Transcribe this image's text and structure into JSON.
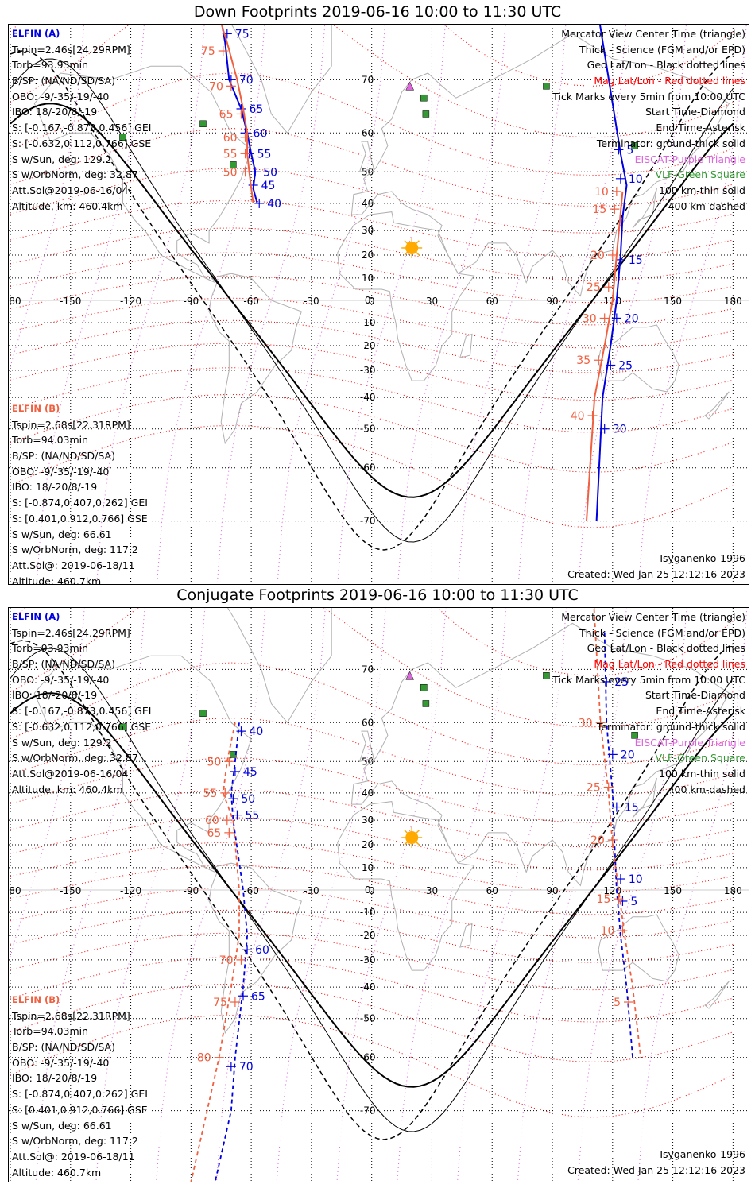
{
  "panels": [
    {
      "title": "Down Footprints 2019-06-16 10:00 to 11:30 UTC",
      "a_info": {
        "name": "ELFIN (A)",
        "lines": [
          "Tspin=2.46s[24.29RPM]",
          "Torb=93.93min",
          "B/SP: (NA/ND/SD/SA)",
          "OBO: -9/-35/-19/-40",
          "IBO: 18/-20/8/-19",
          "S: [-0.167,-0.873,0.456] GEI",
          "S: [-0.632,0.112,0.766] GSE",
          "S w/Sun, deg: 129.2",
          "S w/OrbNorm, deg: 32.87",
          "Att.Sol@2019-06-16/04",
          "Altitude, km: 460.4km"
        ]
      },
      "b_info": {
        "name": "ELFIN (B)",
        "lines": [
          "Tspin=2.68s[22.31RPM]",
          "Torb=94.03min",
          "B/SP: (NA/ND/SD/SA)",
          "OBO: -9/-35/-19/-40",
          "IBO: 18/-20/8/-19",
          "S: [-0.874,0.407,0.262] GEI",
          "S: [0.401,0.912,0.766] GSE",
          "S w/Sun, deg: 66.61",
          "S w/OrbNorm, deg: 117.2",
          "Att.Sol@: 2019-06-18/11",
          "Altitude: 460.7km"
        ]
      },
      "legend": [
        "Mercator View Center Time (triangle)",
        "Thick - Science (FGM and/or EPD)",
        "Geo Lat/Lon - Black dotted lines",
        "Mag Lat/Lon - Red dotted lines",
        "Tick Marks every 5min from 10:00 UTC",
        "Start Time-Diamond",
        "End Time-Asterisk",
        "Terminator: ground-thick solid",
        "EISCAT-Purple Triangle",
        "VLF-Green Square",
        "100 km-thin solid",
        "400 km-dashed"
      ],
      "model": "Tsyganenko-1996",
      "created": "Created: Wed Jan 25 12:12:16 2023"
    },
    {
      "title": "Conjugate Footprints 2019-06-16 10:00 to 11:30 UTC",
      "a_info": {
        "name": "ELFIN (A)",
        "lines": [
          "Tspin=2.46s[24.29RPM]",
          "Torb=93.93min",
          "B/SP: (NA/ND/SD/SA)",
          "OBO: -9/-35/-19/-40",
          "IBO: 18/-20/8/-19",
          "S: [-0.167,-0.873,0.456] GEI",
          "S: [-0.632,0.112,0.766] GSE",
          "S w/Sun, deg: 129.2",
          "S w/OrbNorm, deg: 32.87",
          "Att.Sol@2019-06-16/04",
          "Altitude, km: 460.4km"
        ]
      },
      "b_info": {
        "name": "ELFIN (B)",
        "lines": [
          "Tspin=2.68s[22.31RPM]",
          "Torb=94.03min",
          "B/SP: (NA/ND/SD/SA)",
          "OBO: -9/-35/-19/-40",
          "IBO: 18/-20/8/-19",
          "S: [-0.874,0.407,0.262] GEI",
          "S: [0.401,0.912,0.766] GSE",
          "S w/Sun, deg: 66.61",
          "S w/OrbNorm, deg: 117.2",
          "Att.Sol@: 2019-06-18/11",
          "Altitude: 460.7km"
        ]
      },
      "legend": [
        "Mercator View Center Time (triangle)",
        "Thick - Science (FGM and/or EPD)",
        "Geo Lat/Lon - Black dotted lines",
        "Mag Lat/Lon - Red dotted lines",
        "Tick Marks every 5min from 10:00 UTC",
        "Start Time-Diamond",
        "End Time-Asterisk",
        "Terminator: ground-thick solid",
        "EISCAT-Purple Triangle",
        "VLF-Green Square",
        "100 km-thin solid",
        "400 km-dashed"
      ],
      "model": "Tsyganenko-1996",
      "created": "Created: Wed Jan 25 12:12:16 2023"
    }
  ],
  "colors": {
    "elfin_a": "#0000e0",
    "elfin_b": "#f06040",
    "mag_grid": "#ff0000",
    "geo_grid": "#000000",
    "eiscat": "#dd66dd",
    "vlf": "#339933",
    "sun": "#ffaa00",
    "coast": "#b0b0b0"
  },
  "chart_data": [
    {
      "type": "scatter",
      "title": "Down Footprints 2019-06-16 10:00 to 11:30 UTC",
      "x_ticks": [
        -180,
        -150,
        -120,
        -90,
        -60,
        -30,
        0,
        30,
        60,
        90,
        120,
        150,
        180
      ],
      "y_ticks": [
        70,
        60,
        50,
        40,
        30,
        20,
        10,
        0,
        -10,
        -20,
        -30,
        -40,
        -50,
        -60,
        -70
      ],
      "xlim": [
        -180,
        180
      ],
      "grid": true,
      "subsolar_point": [
        20,
        23
      ],
      "eiscat_stations": [
        [
          16,
          78
        ],
        [
          19,
          69
        ]
      ],
      "vlf_stations": [
        [
          -69,
          52
        ],
        [
          -84,
          62
        ],
        [
          -124,
          59
        ],
        [
          26,
          67
        ],
        [
          27,
          64
        ],
        [
          87,
          69
        ],
        [
          131,
          57
        ]
      ],
      "series": [
        {
          "name": "ELFIN (A)",
          "points": [
            [
              -85,
              85
            ],
            [
              -73,
              75
            ],
            [
              -71,
              70
            ],
            [
              -65,
              65
            ],
            [
              -62,
              60
            ],
            [
              -60,
              55
            ],
            [
              -58,
              50
            ],
            [
              -59,
              45
            ],
            [
              -57,
              40
            ]
          ],
          "ticks": [
            [
              -72,
              76,
              "75"
            ],
            [
              -70,
              70,
              "70"
            ],
            [
              -65,
              65,
              "65"
            ],
            [
              -63,
              60,
              "60"
            ],
            [
              -61,
              55,
              "55"
            ],
            [
              -58,
              50,
              "50"
            ],
            [
              -59,
              46,
              "45"
            ],
            [
              -56,
              40,
              "40"
            ]
          ]
        },
        {
          "name": "ELFIN (A) east pass",
          "points": [
            [
              111,
              80
            ],
            [
              124,
              55
            ],
            [
              127,
              46
            ],
            [
              125,
              35
            ],
            [
              124,
              20
            ],
            [
              122,
              0
            ],
            [
              119,
              -20
            ],
            [
              115,
              -40
            ],
            [
              112,
              -70
            ]
          ],
          "ticks": [
            [
              123,
              56,
              "5"
            ],
            [
              124,
              48,
              "10"
            ],
            [
              124,
              18,
              "15"
            ],
            [
              122,
              -8,
              "20"
            ],
            [
              119,
              -28,
              "25"
            ],
            [
              116,
              -50,
              "30"
            ]
          ]
        },
        {
          "name": "ELFIN (B)",
          "points": [
            [
              -84,
              85
            ],
            [
              -80,
              80
            ],
            [
              -72,
              75
            ],
            [
              -67,
              70
            ],
            [
              -64,
              65
            ],
            [
              -62,
              60
            ],
            [
              -62,
              55
            ],
            [
              -61,
              50
            ],
            [
              -59,
              40
            ]
          ],
          "ticks": [
            [
              -83,
              84,
              "85"
            ],
            [
              -80,
              79,
              "80"
            ],
            [
              -74,
              74,
              "75"
            ],
            [
              -70,
              69,
              "70"
            ],
            [
              -65,
              64,
              "65"
            ],
            [
              -63,
              59,
              "60"
            ],
            [
              -63,
              55,
              "55"
            ],
            [
              -63,
              50,
              "50"
            ]
          ]
        },
        {
          "name": "ELFIN (B) east pass",
          "points": [
            [
              125,
              44
            ],
            [
              122,
              20
            ],
            [
              120,
              0
            ],
            [
              116,
              -20
            ],
            [
              111,
              -40
            ],
            [
              107,
              -70
            ]
          ],
          "ticks": [
            [
              122,
              44,
              "10"
            ],
            [
              121,
              38,
              "15"
            ],
            [
              120,
              20,
              "20"
            ],
            [
              118,
              6,
              "25"
            ],
            [
              116,
              -8,
              "30"
            ],
            [
              113,
              -26,
              "35"
            ],
            [
              110,
              -46,
              "40"
            ]
          ]
        }
      ]
    },
    {
      "type": "scatter",
      "title": "Conjugate Footprints 2019-06-16 10:00 to 11:30 UTC",
      "x_ticks": [
        -180,
        -150,
        -120,
        -90,
        -60,
        -30,
        0,
        30,
        60,
        90,
        120,
        150,
        180
      ],
      "y_ticks": [
        70,
        60,
        50,
        40,
        30,
        20,
        10,
        0,
        -10,
        -20,
        -30,
        -40,
        -50,
        -60,
        -70
      ],
      "xlim": [
        -180,
        180
      ],
      "grid": true,
      "subsolar_point": [
        20,
        23
      ],
      "series": [
        {
          "name": "ELFIN (A)",
          "points": [
            [
              -66,
              60
            ],
            [
              -68,
              50
            ],
            [
              -70,
              40
            ],
            [
              -69,
              30
            ],
            [
              -64,
              0
            ],
            [
              -62,
              -20
            ],
            [
              -64,
              -40
            ],
            [
              -68,
              -60
            ],
            [
              -70,
              -70
            ],
            [
              -80,
              -80
            ]
          ],
          "ticks": [
            [
              -65,
              58,
              "40"
            ],
            [
              -68,
              47,
              "45"
            ],
            [
              -69,
              38,
              "50"
            ],
            [
              -67,
              32,
              "55"
            ],
            [
              -62,
              -26,
              "60"
            ],
            [
              -64,
              -43,
              "65"
            ],
            [
              -70,
              -62,
              "70"
            ]
          ]
        },
        {
          "name": "ELFIN (A) east pass",
          "points": [
            [
              116,
              75
            ],
            [
              117,
              60
            ],
            [
              120,
              40
            ],
            [
              121,
              20
            ],
            [
              122,
              0
            ],
            [
              124,
              -20
            ],
            [
              127,
              -40
            ],
            [
              130,
              -60
            ]
          ],
          "ticks": [
            [
              117,
              68,
              "25"
            ],
            [
              120,
              52,
              "20"
            ],
            [
              122,
              35,
              "15"
            ],
            [
              124,
              5,
              "10"
            ],
            [
              125,
              -5,
              "5"
            ]
          ]
        },
        {
          "name": "ELFIN (B)",
          "points": [
            [
              -68,
              60
            ],
            [
              -72,
              50
            ],
            [
              -74,
              40
            ],
            [
              -69,
              30
            ],
            [
              -66,
              0
            ],
            [
              -66,
              -20
            ],
            [
              -70,
              -40
            ],
            [
              -76,
              -60
            ],
            [
              -92,
              -80
            ]
          ],
          "ticks": [
            [
              -71,
              50,
              "50"
            ],
            [
              -73,
              40,
              "55"
            ],
            [
              -72,
              30,
              "60"
            ],
            [
              -71,
              25,
              "65"
            ],
            [
              -65,
              -30,
              "70"
            ],
            [
              -68,
              -45,
              "75"
            ],
            [
              -76,
              -60,
              "80"
            ]
          ]
        },
        {
          "name": "ELFIN (B) east pass",
          "points": [
            [
              110,
              80
            ],
            [
              114,
              60
            ],
            [
              118,
              40
            ],
            [
              120,
              20
            ],
            [
              123,
              0
            ],
            [
              126,
              -20
            ],
            [
              130,
              -40
            ],
            [
              134,
              -60
            ]
          ],
          "ticks": [
            [
              111,
              78,
              "35"
            ],
            [
              114,
              60,
              "30"
            ],
            [
              118,
              42,
              "25"
            ],
            [
              120,
              22,
              "20"
            ],
            [
              123,
              -4,
              "15"
            ],
            [
              125,
              -18,
              "10"
            ],
            [
              128,
              -45,
              "5"
            ]
          ]
        }
      ]
    }
  ]
}
